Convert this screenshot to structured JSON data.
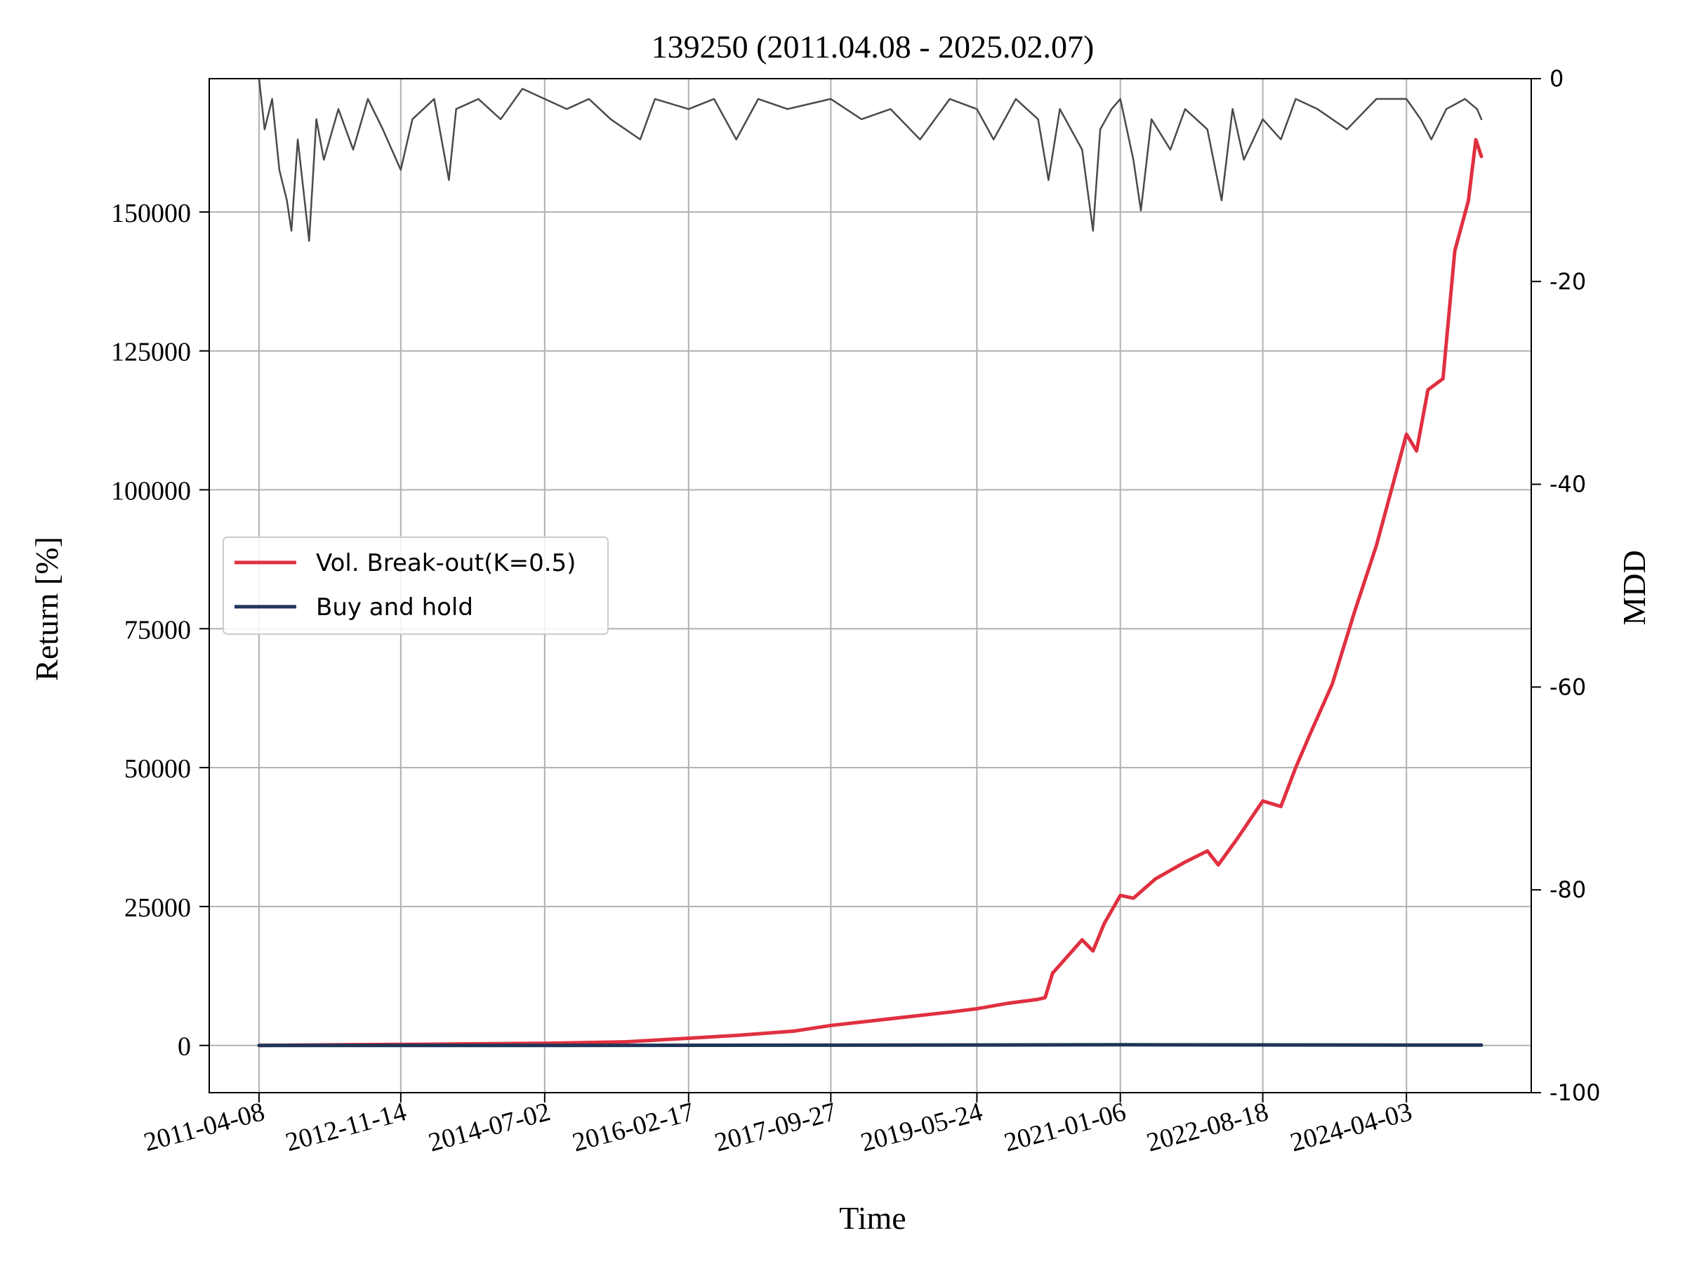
{
  "chart_data": {
    "type": "line",
    "title": "139250 (2011.04.08 - 2025.02.07)",
    "xlabel": "Time",
    "ylabel": "Return [%]",
    "y2label": "MDD",
    "grid": true,
    "legend_position": "center-left",
    "x_start": "2011-04-08",
    "x_end": "2025-02-07",
    "xlim": [
      "2010-09-14",
      "2025-09-01"
    ],
    "ylim": [
      -8500,
      174000
    ],
    "y2lim": [
      -100,
      0
    ],
    "x_ticks": [
      "2011-04-08",
      "2012-11-14",
      "2014-07-02",
      "2016-02-17",
      "2017-09-27",
      "2019-05-24",
      "2021-01-06",
      "2022-08-18",
      "2024-04-03"
    ],
    "y_ticks": [
      0,
      25000,
      50000,
      75000,
      100000,
      125000,
      150000
    ],
    "y2_ticks": [
      0,
      -20,
      -40,
      -60,
      -80,
      -100
    ],
    "series": [
      {
        "name": "Vol. Break-out(K=0.5)",
        "color": "#e03040",
        "axis": "left",
        "points": [
          [
            "2011-04-08",
            0
          ],
          [
            "2012-06-01",
            150
          ],
          [
            "2013-06-01",
            250
          ],
          [
            "2014-07-02",
            380
          ],
          [
            "2015-06-01",
            650
          ],
          [
            "2016-02-17",
            1300
          ],
          [
            "2016-09-01",
            1800
          ],
          [
            "2017-05-01",
            2600
          ],
          [
            "2017-09-27",
            3600
          ],
          [
            "2018-04-01",
            4500
          ],
          [
            "2018-10-01",
            5400
          ],
          [
            "2019-02-01",
            6000
          ],
          [
            "2019-05-24",
            6600
          ],
          [
            "2019-10-01",
            7600
          ],
          [
            "2020-02-01",
            8300
          ],
          [
            "2020-03-01",
            8600
          ],
          [
            "2020-04-01",
            13000
          ],
          [
            "2020-06-01",
            16000
          ],
          [
            "2020-08-01",
            19000
          ],
          [
            "2020-09-15",
            17000
          ],
          [
            "2020-11-01",
            22000
          ],
          [
            "2021-01-06",
            27000
          ],
          [
            "2021-03-01",
            26500
          ],
          [
            "2021-06-01",
            30000
          ],
          [
            "2021-10-01",
            33000
          ],
          [
            "2022-01-01",
            35000
          ],
          [
            "2022-02-15",
            32500
          ],
          [
            "2022-05-01",
            37000
          ],
          [
            "2022-08-18",
            44000
          ],
          [
            "2022-11-01",
            43000
          ],
          [
            "2023-01-01",
            50000
          ],
          [
            "2023-03-01",
            56000
          ],
          [
            "2023-06-01",
            65000
          ],
          [
            "2023-09-01",
            78000
          ],
          [
            "2023-12-01",
            90000
          ],
          [
            "2024-02-01",
            100000
          ],
          [
            "2024-04-03",
            110000
          ],
          [
            "2024-05-15",
            107000
          ],
          [
            "2024-07-01",
            118000
          ],
          [
            "2024-09-01",
            120000
          ],
          [
            "2024-10-20",
            143000
          ],
          [
            "2024-12-15",
            152000
          ],
          [
            "2025-01-15",
            163000
          ],
          [
            "2025-02-07",
            160000
          ]
        ]
      },
      {
        "name": "Buy and hold",
        "color": "#1f3558",
        "axis": "left",
        "points": [
          [
            "2011-04-08",
            0
          ],
          [
            "2014-07-02",
            10
          ],
          [
            "2017-09-27",
            40
          ],
          [
            "2021-01-06",
            120
          ],
          [
            "2024-04-03",
            60
          ],
          [
            "2025-02-07",
            50
          ]
        ]
      },
      {
        "name": "",
        "color": "#4a4a4a",
        "axis": "right",
        "points": [
          [
            "2011-04-08",
            0
          ],
          [
            "2011-05-01",
            -5
          ],
          [
            "2011-06-01",
            -2
          ],
          [
            "2011-07-01",
            -9
          ],
          [
            "2011-08-01",
            -12
          ],
          [
            "2011-08-20",
            -15
          ],
          [
            "2011-09-15",
            -6
          ],
          [
            "2011-11-01",
            -16
          ],
          [
            "2011-12-01",
            -4
          ],
          [
            "2012-01-01",
            -8
          ],
          [
            "2012-03-01",
            -3
          ],
          [
            "2012-05-01",
            -7
          ],
          [
            "2012-07-01",
            -2
          ],
          [
            "2012-09-01",
            -5
          ],
          [
            "2012-11-14",
            -9
          ],
          [
            "2013-01-01",
            -4
          ],
          [
            "2013-04-01",
            -2
          ],
          [
            "2013-06-01",
            -10
          ],
          [
            "2013-07-01",
            -3
          ],
          [
            "2013-10-01",
            -2
          ],
          [
            "2014-01-01",
            -4
          ],
          [
            "2014-04-01",
            -1
          ],
          [
            "2014-07-02",
            -2
          ],
          [
            "2014-10-01",
            -3
          ],
          [
            "2015-01-01",
            -2
          ],
          [
            "2015-04-01",
            -4
          ],
          [
            "2015-08-01",
            -6
          ],
          [
            "2015-10-01",
            -2
          ],
          [
            "2016-02-17",
            -3
          ],
          [
            "2016-06-01",
            -2
          ],
          [
            "2016-09-01",
            -6
          ],
          [
            "2016-12-01",
            -2
          ],
          [
            "2017-04-01",
            -3
          ],
          [
            "2017-09-27",
            -2
          ],
          [
            "2018-02-01",
            -4
          ],
          [
            "2018-06-01",
            -3
          ],
          [
            "2018-10-01",
            -6
          ],
          [
            "2019-02-01",
            -2
          ],
          [
            "2019-05-24",
            -3
          ],
          [
            "2019-08-01",
            -6
          ],
          [
            "2019-11-01",
            -2
          ],
          [
            "2020-02-01",
            -4
          ],
          [
            "2020-03-15",
            -10
          ],
          [
            "2020-05-01",
            -3
          ],
          [
            "2020-08-01",
            -7
          ],
          [
            "2020-09-15",
            -15
          ],
          [
            "2020-10-15",
            -5
          ],
          [
            "2020-12-01",
            -3
          ],
          [
            "2021-01-06",
            -2
          ],
          [
            "2021-03-01",
            -8
          ],
          [
            "2021-04-01",
            -13
          ],
          [
            "2021-05-15",
            -4
          ],
          [
            "2021-08-01",
            -7
          ],
          [
            "2021-10-01",
            -3
          ],
          [
            "2022-01-01",
            -5
          ],
          [
            "2022-03-01",
            -12
          ],
          [
            "2022-04-15",
            -3
          ],
          [
            "2022-06-01",
            -8
          ],
          [
            "2022-08-18",
            -4
          ],
          [
            "2022-11-01",
            -6
          ],
          [
            "2023-01-01",
            -2
          ],
          [
            "2023-04-01",
            -3
          ],
          [
            "2023-08-01",
            -5
          ],
          [
            "2023-12-01",
            -2
          ],
          [
            "2024-04-03",
            -2
          ],
          [
            "2024-06-01",
            -4
          ],
          [
            "2024-07-15",
            -6
          ],
          [
            "2024-09-15",
            -3
          ],
          [
            "2024-12-01",
            -2
          ],
          [
            "2025-01-20",
            -3
          ],
          [
            "2025-02-07",
            -4
          ]
        ]
      }
    ]
  }
}
